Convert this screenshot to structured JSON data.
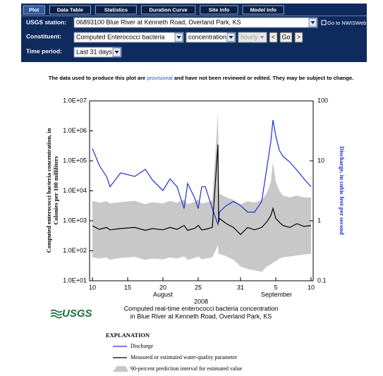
{
  "tabs": [
    "Plot",
    "Data Table",
    "Statistics",
    "Duration Curve",
    "Site Info",
    "Model Info"
  ],
  "form": {
    "station_label": "USGS station:",
    "station_value": "06893100 Blue River at Kenneth Road, Overland Park, KS",
    "nwis_link": "Go to NWISWeb",
    "constituent_label": "Constituent:",
    "constituent_value": "Computed Enterococci bacteria",
    "measure_value": "concentration",
    "interval_value": "hourly",
    "prev": "<",
    "go": "Go",
    "next": ">",
    "period_label": "Time period:",
    "period_value": "Last 31 days"
  },
  "notice": {
    "before": "The data used to produce this plot are",
    "link": "provisional",
    "after": "and have not been reviewed or edited. They may be subject to change."
  },
  "logo": "USGS",
  "chart_data": {
    "type": "line",
    "title": "Computed real-time enterococci bacteria concentration",
    "subtitle": "in Blue River at Kenneth Road, Overland Park, KS",
    "y_label": [
      "Computed enterococci bacteria concentration, in",
      "Colonies per 100 milliliters"
    ],
    "y2_label": "Discharge, in cubic feet per second",
    "months": [
      "August",
      "September"
    ],
    "year": "2008",
    "x": [
      10,
      11,
      12,
      12.5,
      14,
      16,
      17.5,
      18.5,
      20,
      21,
      22,
      23,
      23.5,
      24.5,
      25,
      25.5,
      26,
      27,
      27.8,
      27.9,
      28,
      29,
      30,
      31,
      32,
      33,
      34,
      34.7,
      35.3,
      35.6,
      36,
      36.5,
      37,
      38,
      39,
      40,
      41
    ],
    "xlim": [
      9.6,
      41.3
    ],
    "xticks": [
      10,
      15,
      20,
      25,
      31,
      {
        "value": 36,
        "label": "5"
      },
      {
        "value": 41,
        "label": "10"
      }
    ],
    "ylog": true,
    "ylim": [
      10,
      10000000
    ],
    "yticks": [
      {
        "value": 10,
        "label": "1.0E+01"
      },
      {
        "value": 100,
        "label": "1.0E+02"
      },
      {
        "value": 1000,
        "label": "1.0E+03"
      },
      {
        "value": 10000,
        "label": "1.0E+04"
      },
      {
        "value": 100000,
        "label": "1.0E+05"
      },
      {
        "value": 1000000,
        "label": "1.0E+06"
      },
      {
        "value": 10000000,
        "label": "1.0E+07"
      }
    ],
    "y2log": true,
    "y2lim": [
      0.1,
      100
    ],
    "y2ticks": [
      0.1,
      1,
      10,
      100
    ],
    "grid": false,
    "legend_title": "EXPLANATION",
    "series": [
      {
        "name": "Discharge",
        "color": "#1f2fd6",
        "axis": "y2",
        "values": [
          16,
          8.3,
          5.5,
          3.7,
          6.3,
          5.5,
          7.2,
          4.8,
          3.2,
          5,
          3.7,
          1.6,
          4.2,
          2.4,
          1.6,
          3.7,
          3.7,
          1.6,
          0.87,
          1,
          1.4,
          1.8,
          2.1,
          1.8,
          1.4,
          1.4,
          2.1,
          7.2,
          21,
          48,
          26,
          15,
          12,
          9.5,
          7,
          5,
          3.7
        ]
      },
      {
        "name": "Measured or estimated water-quality parameter",
        "color": "#000000",
        "values": [
          680,
          520,
          600,
          500,
          550,
          600,
          480,
          550,
          500,
          600,
          520,
          700,
          480,
          560,
          700,
          500,
          520,
          600,
          350000,
          900,
          1200,
          800,
          600,
          350,
          600,
          500,
          600,
          900,
          1500,
          2600,
          1200,
          900,
          700,
          600,
          800,
          650,
          700
        ]
      },
      {
        "name": "90-percent prediction interval for estimated value",
        "color": "#c8c8c8",
        "lower": [
          60,
          55,
          60,
          50,
          58,
          62,
          50,
          55,
          52,
          60,
          55,
          65,
          50,
          58,
          65,
          52,
          55,
          60,
          150,
          70,
          80,
          65,
          50,
          30,
          25,
          22,
          20,
          30,
          35,
          40,
          45,
          55,
          60,
          65,
          70,
          75,
          80
        ],
        "upper": [
          4600,
          4000,
          4500,
          3800,
          4200,
          4600,
          3600,
          4200,
          3800,
          4600,
          4000,
          5200,
          3600,
          4300,
          5200,
          3800,
          4000,
          4600,
          4000000,
          30000,
          8000,
          6000,
          5000,
          3500,
          4500,
          4000,
          5000,
          8000,
          20000,
          90000,
          20000,
          10000,
          7000,
          6000,
          7000,
          6000,
          6000
        ]
      }
    ]
  }
}
